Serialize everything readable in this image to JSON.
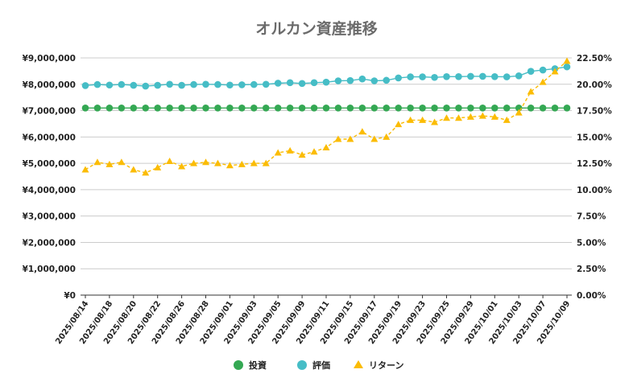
{
  "chart_data": {
    "type": "line",
    "title": "オルカン資産推移",
    "x": [
      "2025/08/14",
      "2025/08/15",
      "2025/08/18",
      "2025/08/19",
      "2025/08/20",
      "2025/08/21",
      "2025/08/22",
      "2025/08/25",
      "2025/08/26",
      "2025/08/27",
      "2025/08/28",
      "2025/08/29",
      "2025/09/01",
      "2025/09/02",
      "2025/09/03",
      "2025/09/04",
      "2025/09/05",
      "2025/09/08",
      "2025/09/09",
      "2025/09/10",
      "2025/09/11",
      "2025/09/12",
      "2025/09/15",
      "2025/09/16",
      "2025/09/17",
      "2025/09/18",
      "2025/09/19",
      "2025/09/22",
      "2025/09/23",
      "2025/09/24",
      "2025/09/25",
      "2025/09/26",
      "2025/09/29",
      "2025/09/30",
      "2025/10/01",
      "2025/10/02",
      "2025/10/03",
      "2025/10/06",
      "2025/10/07",
      "2025/10/08",
      "2025/10/09"
    ],
    "x_tick_labels": [
      "2025/08/14",
      "2025/08/18",
      "2025/08/20",
      "2025/08/22",
      "2025/08/26",
      "2025/08/28",
      "2025/09/01",
      "2025/09/03",
      "2025/09/05",
      "2025/09/09",
      "2025/09/11",
      "2025/09/15",
      "2025/09/17",
      "2025/09/19",
      "2025/09/23",
      "2025/09/25",
      "2025/09/29",
      "2025/10/01",
      "2025/10/03",
      "2025/10/07",
      "2025/10/09"
    ],
    "y_left": {
      "min": 0,
      "max": 9000000,
      "tick_labels": [
        "¥0",
        "¥1,000,000",
        "¥2,000,000",
        "¥3,000,000",
        "¥4,000,000",
        "¥5,000,000",
        "¥6,000,000",
        "¥7,000,000",
        "¥8,000,000",
        "¥9,000,000"
      ]
    },
    "y_right": {
      "min": 0,
      "max": 22.5,
      "tick_labels": [
        "0.00%",
        "2.50%",
        "5.00%",
        "7.50%",
        "10.00%",
        "12.50%",
        "15.00%",
        "17.50%",
        "20.00%",
        "22.50%"
      ]
    },
    "series": [
      {
        "name": "投資",
        "axis": "left",
        "color": "#34a853",
        "marker": "circle",
        "values": [
          7100000,
          7100000,
          7100000,
          7100000,
          7100000,
          7100000,
          7100000,
          7100000,
          7100000,
          7100000,
          7100000,
          7100000,
          7100000,
          7100000,
          7100000,
          7100000,
          7100000,
          7100000,
          7100000,
          7100000,
          7100000,
          7100000,
          7100000,
          7100000,
          7100000,
          7100000,
          7100000,
          7100000,
          7100000,
          7100000,
          7100000,
          7100000,
          7100000,
          7100000,
          7100000,
          7100000,
          7100000,
          7100000,
          7100000,
          7100000,
          7100000
        ]
      },
      {
        "name": "評価",
        "axis": "left",
        "color": "#46bdc6",
        "marker": "circle",
        "values": [
          7950000,
          7990000,
          7970000,
          7990000,
          7960000,
          7930000,
          7960000,
          8000000,
          7960000,
          7990000,
          8000000,
          7990000,
          7970000,
          7980000,
          7990000,
          8000000,
          8040000,
          8060000,
          8030000,
          8060000,
          8080000,
          8130000,
          8140000,
          8200000,
          8130000,
          8150000,
          8240000,
          8280000,
          8280000,
          8260000,
          8290000,
          8290000,
          8300000,
          8300000,
          8290000,
          8280000,
          8320000,
          8490000,
          8540000,
          8590000,
          8660000
        ]
      },
      {
        "name": "リターン",
        "axis": "right",
        "color": "#fbbc04",
        "marker": "triangle",
        "dashed": true,
        "values": [
          11.9,
          12.6,
          12.4,
          12.6,
          11.9,
          11.6,
          12.1,
          12.7,
          12.2,
          12.5,
          12.6,
          12.5,
          12.3,
          12.4,
          12.5,
          12.5,
          13.5,
          13.7,
          13.3,
          13.6,
          14.0,
          14.8,
          14.8,
          15.5,
          14.8,
          15.0,
          16.2,
          16.6,
          16.6,
          16.4,
          16.8,
          16.8,
          16.9,
          17.0,
          16.9,
          16.6,
          17.3,
          19.3,
          20.2,
          21.2,
          22.2
        ]
      }
    ],
    "legend_position": "bottom",
    "grid": true
  }
}
